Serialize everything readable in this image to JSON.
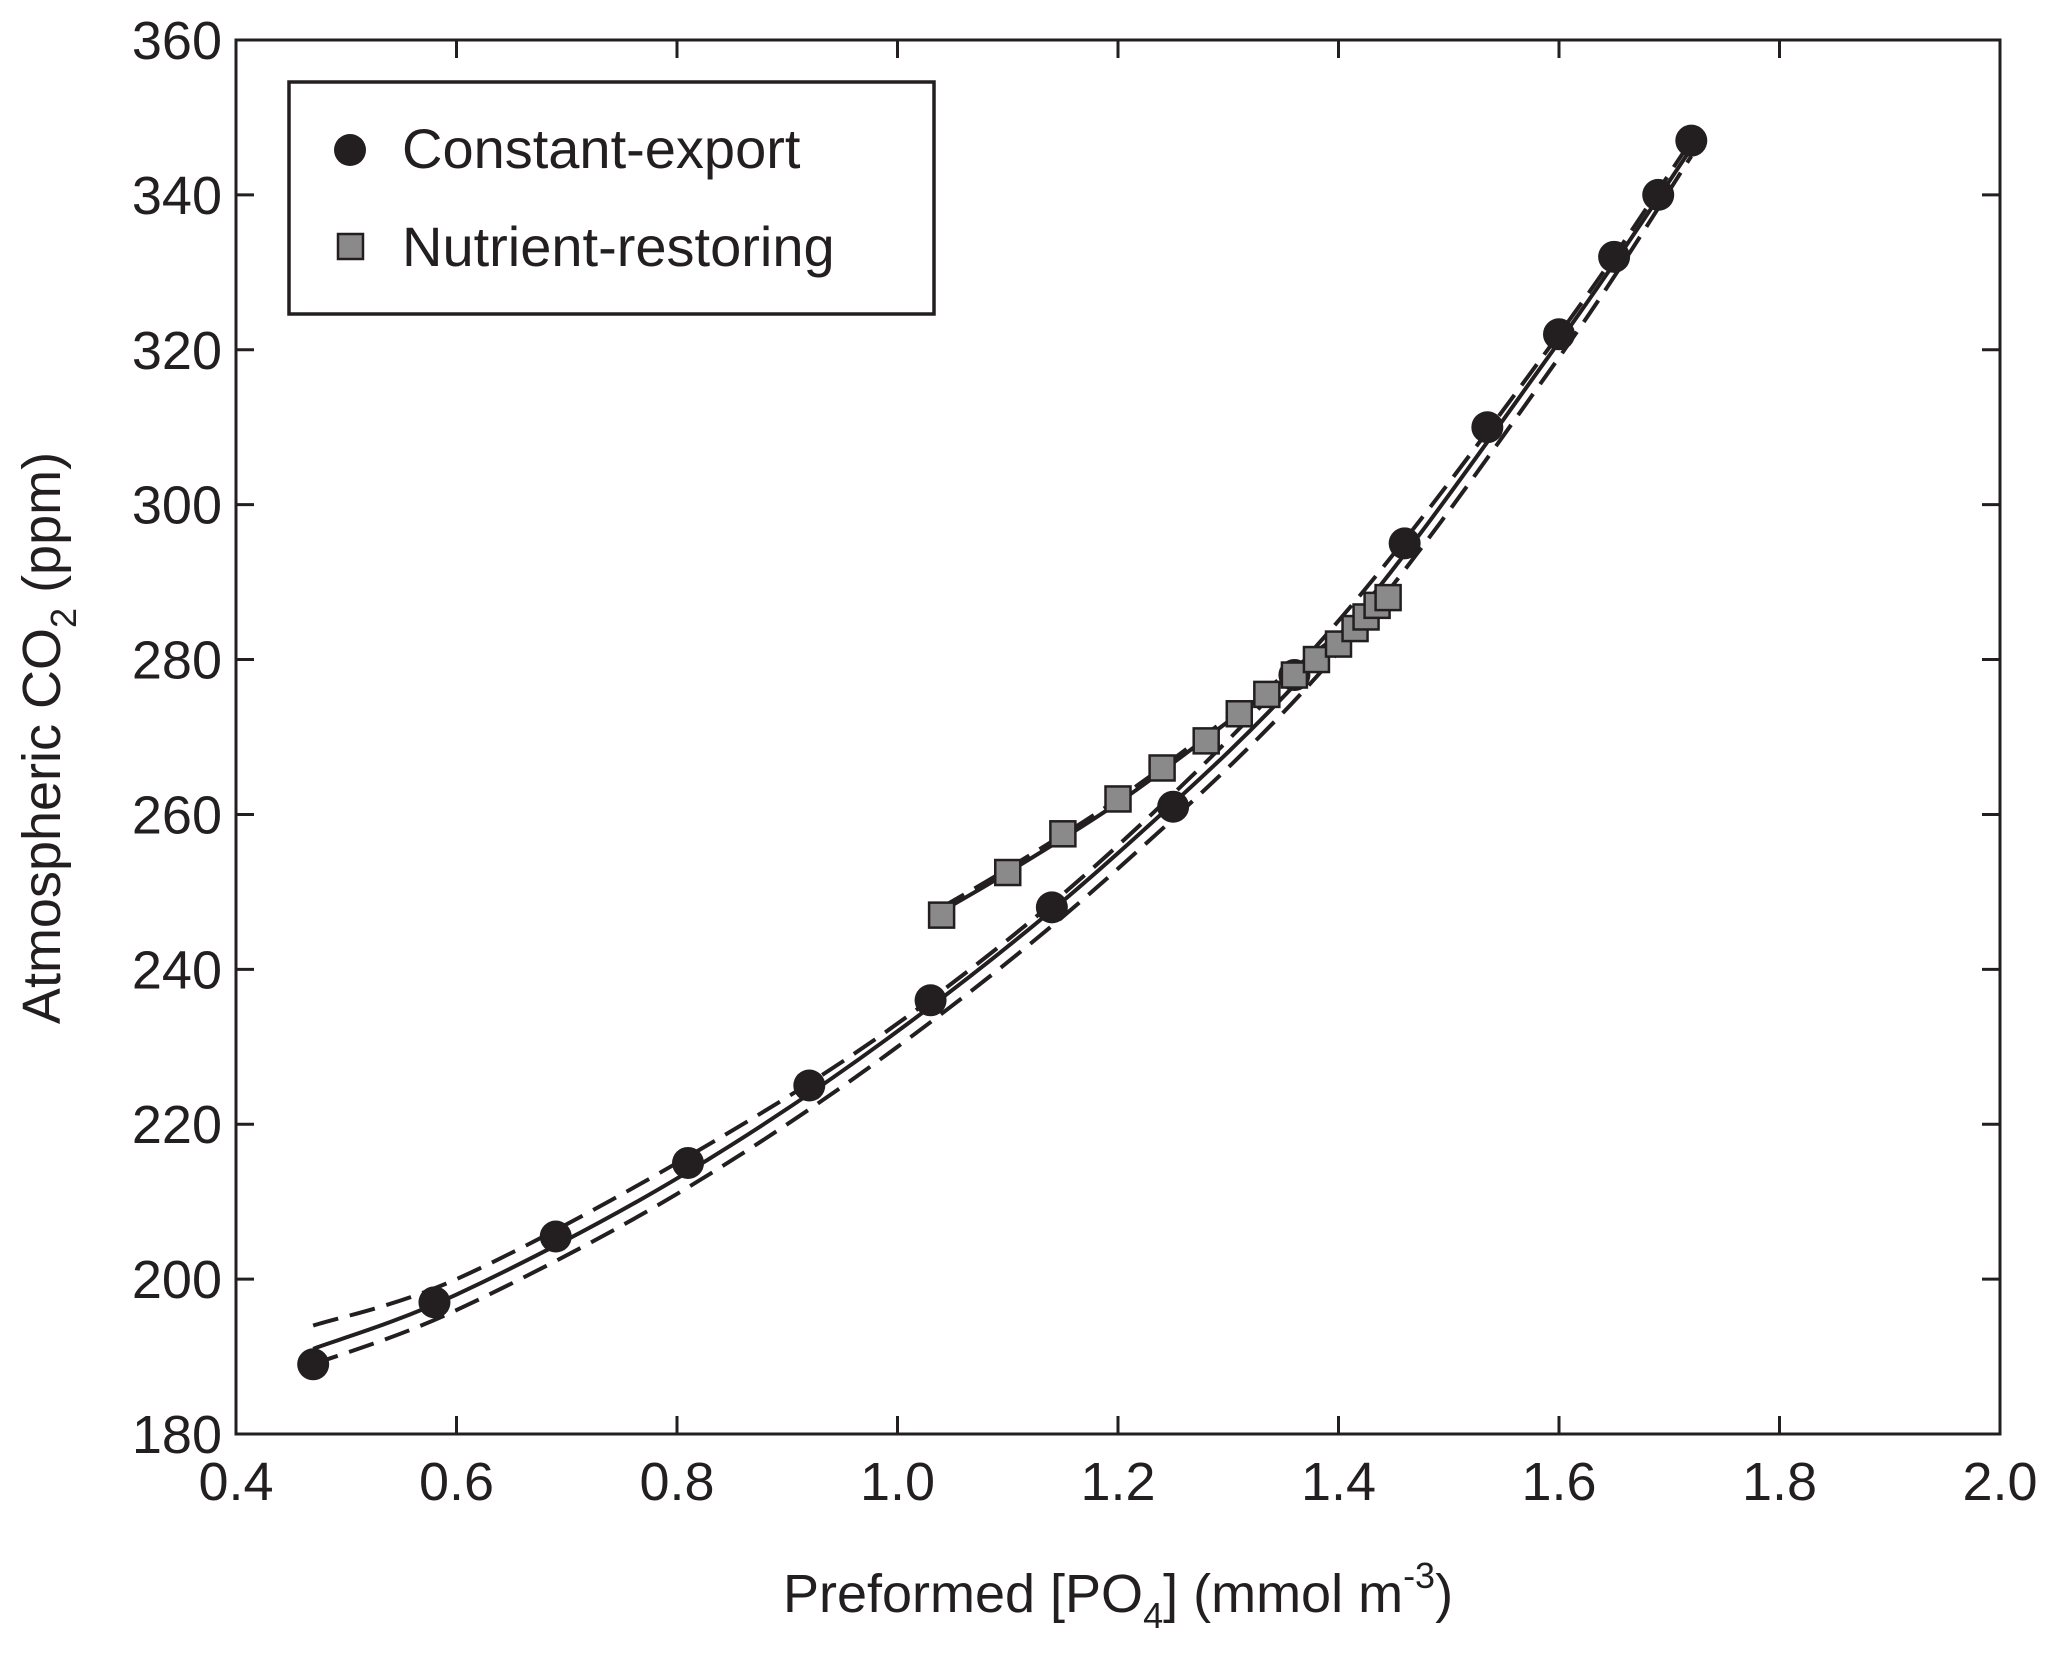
{
  "chart_data": {
    "type": "scatter",
    "title": "",
    "xlabel": "Preformed [PO4] (mmol m-3)",
    "xlabel_parts": {
      "main": "Preformed [PO",
      "sub": "4",
      "rest": "] (mmol m",
      "sup": "-3",
      "close": ")"
    },
    "ylabel": "Atmospheric CO2 (ppm)",
    "ylabel_parts": {
      "main": "Atmospheric CO",
      "sub": "2",
      "rest": " (ppm)"
    },
    "xlim": [
      0.4,
      2.0
    ],
    "ylim": [
      180,
      360
    ],
    "xticks": [
      "0.4",
      "0.6",
      "0.8",
      "1.0",
      "1.2",
      "1.4",
      "1.6",
      "1.8",
      "2.0"
    ],
    "yticks": [
      "180",
      "200",
      "220",
      "240",
      "260",
      "280",
      "300",
      "320",
      "340",
      "360"
    ],
    "grid": false,
    "legend_position": "top-left",
    "series": [
      {
        "name": "Constant-export",
        "marker": "circle",
        "color": "#231f20",
        "x": [
          0.47,
          0.58,
          0.69,
          0.81,
          0.92,
          1.03,
          1.14,
          1.25,
          1.36,
          1.46,
          1.535,
          1.6,
          1.65,
          1.69,
          1.72
        ],
        "y": [
          189,
          197,
          205.5,
          215,
          225,
          236,
          248,
          261,
          278,
          295,
          310,
          322,
          332,
          340,
          347
        ]
      },
      {
        "name": "Nutrient-restoring",
        "marker": "square",
        "color": "#8a8a8a",
        "x": [
          1.04,
          1.1,
          1.15,
          1.2,
          1.24,
          1.28,
          1.31,
          1.335,
          1.36,
          1.38,
          1.4,
          1.415,
          1.425,
          1.435,
          1.445
        ],
        "y": [
          247,
          252.5,
          257.5,
          262,
          266,
          269.5,
          273,
          275.5,
          278,
          280,
          282,
          284,
          285.5,
          287,
          288
        ]
      }
    ],
    "fits": [
      {
        "series": "Constant-export",
        "style": "solid",
        "x": [
          0.47,
          0.6,
          0.8,
          1.0,
          1.2,
          1.4,
          1.6,
          1.72
        ],
        "y": [
          191,
          198,
          213,
          232,
          255,
          283,
          321,
          346
        ]
      },
      {
        "series": "Constant-export",
        "style": "dashed",
        "x": [
          0.47,
          0.6,
          0.8,
          1.0,
          1.2,
          1.4,
          1.6,
          1.72
        ],
        "y": [
          194,
          200,
          215,
          233,
          256,
          285,
          322,
          347
        ]
      },
      {
        "series": "Constant-export",
        "style": "dashed",
        "x": [
          0.47,
          0.6,
          0.8,
          1.0,
          1.2,
          1.4,
          1.6,
          1.72
        ],
        "y": [
          189,
          196,
          211,
          230,
          253,
          281,
          319,
          345
        ]
      },
      {
        "series": "Nutrient-restoring",
        "style": "solid",
        "x": [
          1.04,
          1.1,
          1.2,
          1.3,
          1.44
        ],
        "y": [
          247.5,
          252.5,
          261.5,
          272,
          287
        ]
      },
      {
        "series": "Nutrient-restoring",
        "style": "dashed",
        "x": [
          1.04,
          1.1,
          1.2,
          1.3,
          1.44
        ],
        "y": [
          248,
          253,
          262,
          272.5,
          287.5
        ]
      }
    ]
  }
}
